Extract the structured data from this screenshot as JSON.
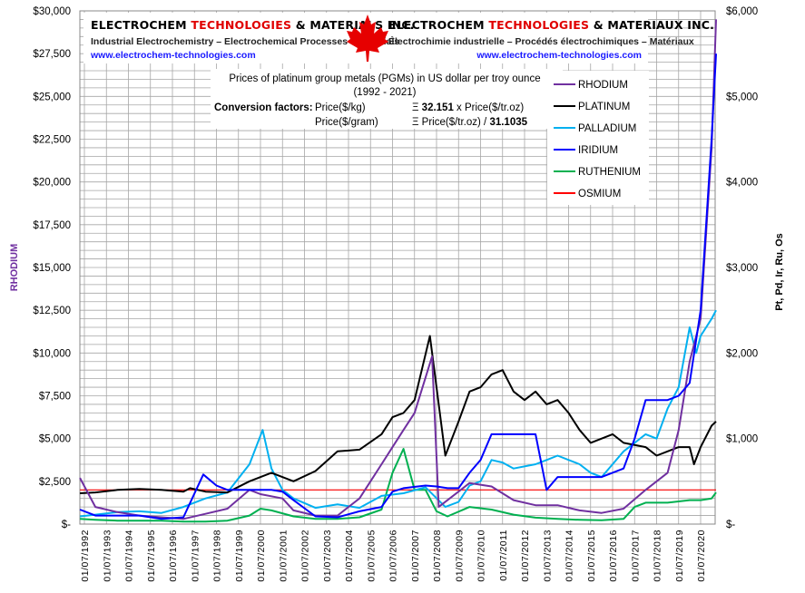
{
  "header": {
    "company_en_part1": "ELECTROCHEM ",
    "company_en_part2": "TECHNOLOGIES",
    "company_en_part3": " & MATERIALS INC.",
    "company_fr_part1": "ELECTROCHEM ",
    "company_fr_part2": "TECHNOLOGIES",
    "company_fr_part3": " & MATERIAUX INC.",
    "tagline_en": "Industrial Electrochemistry – Electrochemical Processes – Materials",
    "tagline_fr": "Électrochimie industrielle – Procédés électrochimiques – Matériaux",
    "url_en": "www.electrochem-technologies.com",
    "url_fr": "www.electrochem-technologies.com"
  },
  "info_box": {
    "title_line1": "Prices of platinum  group  metals  (PGMs) in US dollar  per troy ounce",
    "title_line2": "(1992  - 2021)",
    "conv_label": "Conversion factors:",
    "conv1_left": "Price($/kg)",
    "conv1_eq": "Ξ ",
    "conv1_factor": "32.151",
    "conv1_right": " x Price($/tr.oz)",
    "conv2_left": "Price($/gram)",
    "conv2_eq": "Ξ Price($/tr.oz)  / ",
    "conv2_factor": "31.1035"
  },
  "chart_data": {
    "type": "line",
    "title": "Prices of platinum group metals (PGMs) in US dollar per troy ounce (1992 - 2021)",
    "xlabel": "",
    "ylabel": "RHODIUM",
    "ylabel_right": "Pt, Pd, Ir, Ru, Os",
    "ylim": [
      0,
      30000
    ],
    "ylim_right": [
      0,
      6000
    ],
    "yticks": [
      "$-",
      "$2,500",
      "$5,000",
      "$7,500",
      "$10,000",
      "$12,500",
      "$15,000",
      "$17,500",
      "$20,000",
      "$22,500",
      "$25,000",
      "$27,500",
      "$30,000"
    ],
    "yticks_right": [
      "$-",
      "$1,000",
      "$2,000",
      "$3,000",
      "$4,000",
      "$5,000",
      "$6,000"
    ],
    "xticks": [
      "01/07/1992",
      "01/07/1993",
      "01/07/1994",
      "01/07/1995",
      "01/07/1996",
      "01/07/1997",
      "01/07/1998",
      "01/07/1999",
      "01/07/2000",
      "01/07/2001",
      "01/07/2002",
      "01/07/2003",
      "01/07/2004",
      "01/07/2005",
      "01/07/2006",
      "01/07/2007",
      "01/07/2008",
      "01/07/2009",
      "01/07/2010",
      "01/07/2011",
      "01/07/2012",
      "01/07/2013",
      "01/07/2014",
      "01/07/2015",
      "01/07/2016",
      "01/07/2017",
      "01/07/2018",
      "01/07/2019",
      "01/07/2020"
    ],
    "grid": true,
    "legend_position": "top-right",
    "series": [
      {
        "name": "RHODIUM",
        "axis": "left",
        "color": "#7030a0",
        "x": [
          1992.3,
          1993,
          1994,
          1995,
          1996,
          1997,
          1998,
          1999,
          2000,
          2000.5,
          2001.5,
          2002,
          2003,
          2004,
          2004.5,
          2005,
          2005.5,
          2006,
          2006.5,
          2007,
          2007.5,
          2008.3,
          2008.6,
          2009,
          2010,
          2011,
          2012,
          2013,
          2014,
          2015,
          2016,
          2017,
          2018,
          2019,
          2019.5,
          2020,
          2020.5,
          2021,
          2021.2
        ],
        "values": [
          2700,
          1000,
          700,
          500,
          400,
          300,
          600,
          900,
          2000,
          1750,
          1500,
          800,
          500,
          500,
          1000,
          1500,
          2500,
          3500,
          4500,
          5500,
          6500,
          9800,
          1000,
          1400,
          2400,
          2200,
          1400,
          1100,
          1100,
          800,
          650,
          900,
          2000,
          3000,
          5500,
          9500,
          12000,
          22000,
          29500
        ]
      },
      {
        "name": "PLATINUM",
        "axis": "right",
        "color": "#000000",
        "x": [
          1992.3,
          1993,
          1994,
          1995,
          1996,
          1997,
          1997.3,
          1998,
          1999,
          2000,
          2001,
          2002,
          2003,
          2004,
          2005,
          2006,
          2006.5,
          2007,
          2007.5,
          2008.2,
          2008.9,
          2009.5,
          2010,
          2010.5,
          2011,
          2011.5,
          2012,
          2012.5,
          2013,
          2013.5,
          2014,
          2014.5,
          2015,
          2015.5,
          2016,
          2016.5,
          2017,
          2018,
          2018.5,
          2019,
          2019.5,
          2020,
          2020.2,
          2020.5,
          2021,
          2021.2
        ],
        "values": [
          360,
          370,
          400,
          410,
          400,
          380,
          420,
          380,
          370,
          500,
          600,
          500,
          620,
          850,
          870,
          1050,
          1250,
          1300,
          1450,
          2200,
          800,
          1200,
          1550,
          1600,
          1750,
          1800,
          1550,
          1450,
          1550,
          1400,
          1450,
          1300,
          1100,
          950,
          1000,
          1050,
          950,
          900,
          800,
          850,
          900,
          900,
          700,
          900,
          1150,
          1200
        ]
      },
      {
        "name": "PALLADIUM",
        "axis": "right",
        "color": "#00b0f0",
        "x": [
          1992.3,
          1993,
          1994,
          1995,
          1996,
          1997,
          1998,
          1999,
          2000,
          2000.6,
          2001,
          2001.5,
          2002,
          2003,
          2004,
          2005,
          2006,
          2007,
          2008,
          2008.9,
          2009.5,
          2010,
          2010.5,
          2011,
          2011.5,
          2012,
          2013,
          2013.5,
          2014,
          2015,
          2015.5,
          2016,
          2016.5,
          2017,
          2017.5,
          2018,
          2018.5,
          2019,
          2019.5,
          2020,
          2020.3,
          2020.5,
          2021,
          2021.2
        ],
        "values": [
          90,
          110,
          140,
          150,
          130,
          200,
          300,
          370,
          700,
          1100,
          650,
          400,
          300,
          190,
          230,
          190,
          330,
          360,
          430,
          200,
          260,
          450,
          500,
          750,
          720,
          650,
          700,
          750,
          800,
          700,
          600,
          550,
          700,
          850,
          950,
          1050,
          1000,
          1350,
          1600,
          2300,
          2000,
          2200,
          2400,
          2500
        ]
      },
      {
        "name": "IRIDIUM",
        "axis": "right",
        "color": "#0000ff",
        "x": [
          1992.3,
          1993,
          1994,
          1995,
          1996,
          1997,
          1997.9,
          1998.5,
          1999,
          2000,
          2001,
          2001.5,
          2002,
          2003,
          2004,
          2005,
          2006,
          2006.5,
          2007,
          2008,
          2008.5,
          2009,
          2009.5,
          2010,
          2010.5,
          2011,
          2012,
          2013,
          2013.5,
          2014,
          2015,
          2016,
          2017,
          2017.5,
          2018,
          2019,
          2019.5,
          2020,
          2020.5,
          2021,
          2021.2
        ],
        "values": [
          170,
          100,
          100,
          100,
          60,
          80,
          580,
          450,
          400,
          400,
          400,
          380,
          280,
          90,
          80,
          150,
          200,
          380,
          420,
          450,
          440,
          420,
          420,
          600,
          750,
          1050,
          1050,
          1050,
          400,
          550,
          550,
          550,
          650,
          1000,
          1450,
          1450,
          1500,
          1650,
          2500,
          4500,
          5500
        ]
      },
      {
        "name": "RUTHENIUM",
        "axis": "right",
        "color": "#00b050",
        "x": [
          1992.3,
          1993,
          1994,
          1995,
          1996,
          1997,
          1998,
          1999,
          2000,
          2000.5,
          2001,
          2002,
          2003,
          2004,
          2005,
          2006,
          2006.5,
          2007,
          2007.5,
          2008,
          2008.5,
          2009,
          2010,
          2011,
          2012,
          2013,
          2014,
          2015,
          2016,
          2017,
          2017.5,
          2018,
          2019,
          2020,
          2020.5,
          2021,
          2021.2
        ],
        "values": [
          60,
          50,
          40,
          40,
          40,
          30,
          30,
          40,
          100,
          180,
          160,
          90,
          60,
          60,
          80,
          170,
          600,
          880,
          400,
          400,
          150,
          90,
          200,
          170,
          110,
          75,
          60,
          50,
          45,
          60,
          200,
          250,
          250,
          280,
          280,
          300,
          370
        ]
      },
      {
        "name": "OSMIUM",
        "axis": "right",
        "color": "#ff0000",
        "x": [
          1992.3,
          2021.2
        ],
        "values": [
          400,
          400
        ]
      }
    ]
  }
}
